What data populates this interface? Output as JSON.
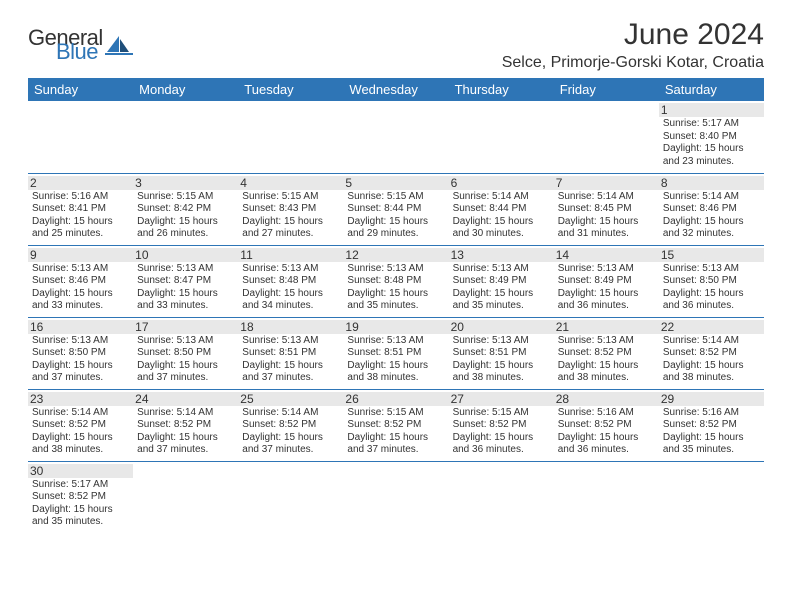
{
  "logo": {
    "general": "General",
    "blue": "Blue"
  },
  "title": "June 2024",
  "location": "Selce, Primorje-Gorski Kotar, Croatia",
  "colors": {
    "header_bg": "#2e75b6",
    "header_text": "#ffffff",
    "day_bg": "#e8e8e8",
    "border": "#2e75b6",
    "text": "#333333"
  },
  "weekdays": [
    "Sunday",
    "Monday",
    "Tuesday",
    "Wednesday",
    "Thursday",
    "Friday",
    "Saturday"
  ],
  "weeks": [
    [
      {
        "n": "",
        "sr": "",
        "ss": "",
        "dl": ""
      },
      {
        "n": "",
        "sr": "",
        "ss": "",
        "dl": ""
      },
      {
        "n": "",
        "sr": "",
        "ss": "",
        "dl": ""
      },
      {
        "n": "",
        "sr": "",
        "ss": "",
        "dl": ""
      },
      {
        "n": "",
        "sr": "",
        "ss": "",
        "dl": ""
      },
      {
        "n": "",
        "sr": "",
        "ss": "",
        "dl": ""
      },
      {
        "n": "1",
        "sr": "Sunrise: 5:17 AM",
        "ss": "Sunset: 8:40 PM",
        "dl": "Daylight: 15 hours and 23 minutes."
      }
    ],
    [
      {
        "n": "2",
        "sr": "Sunrise: 5:16 AM",
        "ss": "Sunset: 8:41 PM",
        "dl": "Daylight: 15 hours and 25 minutes."
      },
      {
        "n": "3",
        "sr": "Sunrise: 5:15 AM",
        "ss": "Sunset: 8:42 PM",
        "dl": "Daylight: 15 hours and 26 minutes."
      },
      {
        "n": "4",
        "sr": "Sunrise: 5:15 AM",
        "ss": "Sunset: 8:43 PM",
        "dl": "Daylight: 15 hours and 27 minutes."
      },
      {
        "n": "5",
        "sr": "Sunrise: 5:15 AM",
        "ss": "Sunset: 8:44 PM",
        "dl": "Daylight: 15 hours and 29 minutes."
      },
      {
        "n": "6",
        "sr": "Sunrise: 5:14 AM",
        "ss": "Sunset: 8:44 PM",
        "dl": "Daylight: 15 hours and 30 minutes."
      },
      {
        "n": "7",
        "sr": "Sunrise: 5:14 AM",
        "ss": "Sunset: 8:45 PM",
        "dl": "Daylight: 15 hours and 31 minutes."
      },
      {
        "n": "8",
        "sr": "Sunrise: 5:14 AM",
        "ss": "Sunset: 8:46 PM",
        "dl": "Daylight: 15 hours and 32 minutes."
      }
    ],
    [
      {
        "n": "9",
        "sr": "Sunrise: 5:13 AM",
        "ss": "Sunset: 8:46 PM",
        "dl": "Daylight: 15 hours and 33 minutes."
      },
      {
        "n": "10",
        "sr": "Sunrise: 5:13 AM",
        "ss": "Sunset: 8:47 PM",
        "dl": "Daylight: 15 hours and 33 minutes."
      },
      {
        "n": "11",
        "sr": "Sunrise: 5:13 AM",
        "ss": "Sunset: 8:48 PM",
        "dl": "Daylight: 15 hours and 34 minutes."
      },
      {
        "n": "12",
        "sr": "Sunrise: 5:13 AM",
        "ss": "Sunset: 8:48 PM",
        "dl": "Daylight: 15 hours and 35 minutes."
      },
      {
        "n": "13",
        "sr": "Sunrise: 5:13 AM",
        "ss": "Sunset: 8:49 PM",
        "dl": "Daylight: 15 hours and 35 minutes."
      },
      {
        "n": "14",
        "sr": "Sunrise: 5:13 AM",
        "ss": "Sunset: 8:49 PM",
        "dl": "Daylight: 15 hours and 36 minutes."
      },
      {
        "n": "15",
        "sr": "Sunrise: 5:13 AM",
        "ss": "Sunset: 8:50 PM",
        "dl": "Daylight: 15 hours and 36 minutes."
      }
    ],
    [
      {
        "n": "16",
        "sr": "Sunrise: 5:13 AM",
        "ss": "Sunset: 8:50 PM",
        "dl": "Daylight: 15 hours and 37 minutes."
      },
      {
        "n": "17",
        "sr": "Sunrise: 5:13 AM",
        "ss": "Sunset: 8:50 PM",
        "dl": "Daylight: 15 hours and 37 minutes."
      },
      {
        "n": "18",
        "sr": "Sunrise: 5:13 AM",
        "ss": "Sunset: 8:51 PM",
        "dl": "Daylight: 15 hours and 37 minutes."
      },
      {
        "n": "19",
        "sr": "Sunrise: 5:13 AM",
        "ss": "Sunset: 8:51 PM",
        "dl": "Daylight: 15 hours and 38 minutes."
      },
      {
        "n": "20",
        "sr": "Sunrise: 5:13 AM",
        "ss": "Sunset: 8:51 PM",
        "dl": "Daylight: 15 hours and 38 minutes."
      },
      {
        "n": "21",
        "sr": "Sunrise: 5:13 AM",
        "ss": "Sunset: 8:52 PM",
        "dl": "Daylight: 15 hours and 38 minutes."
      },
      {
        "n": "22",
        "sr": "Sunrise: 5:14 AM",
        "ss": "Sunset: 8:52 PM",
        "dl": "Daylight: 15 hours and 38 minutes."
      }
    ],
    [
      {
        "n": "23",
        "sr": "Sunrise: 5:14 AM",
        "ss": "Sunset: 8:52 PM",
        "dl": "Daylight: 15 hours and 38 minutes."
      },
      {
        "n": "24",
        "sr": "Sunrise: 5:14 AM",
        "ss": "Sunset: 8:52 PM",
        "dl": "Daylight: 15 hours and 37 minutes."
      },
      {
        "n": "25",
        "sr": "Sunrise: 5:14 AM",
        "ss": "Sunset: 8:52 PM",
        "dl": "Daylight: 15 hours and 37 minutes."
      },
      {
        "n": "26",
        "sr": "Sunrise: 5:15 AM",
        "ss": "Sunset: 8:52 PM",
        "dl": "Daylight: 15 hours and 37 minutes."
      },
      {
        "n": "27",
        "sr": "Sunrise: 5:15 AM",
        "ss": "Sunset: 8:52 PM",
        "dl": "Daylight: 15 hours and 36 minutes."
      },
      {
        "n": "28",
        "sr": "Sunrise: 5:16 AM",
        "ss": "Sunset: 8:52 PM",
        "dl": "Daylight: 15 hours and 36 minutes."
      },
      {
        "n": "29",
        "sr": "Sunrise: 5:16 AM",
        "ss": "Sunset: 8:52 PM",
        "dl": "Daylight: 15 hours and 35 minutes."
      }
    ],
    [
      {
        "n": "30",
        "sr": "Sunrise: 5:17 AM",
        "ss": "Sunset: 8:52 PM",
        "dl": "Daylight: 15 hours and 35 minutes."
      },
      {
        "n": "",
        "sr": "",
        "ss": "",
        "dl": ""
      },
      {
        "n": "",
        "sr": "",
        "ss": "",
        "dl": ""
      },
      {
        "n": "",
        "sr": "",
        "ss": "",
        "dl": ""
      },
      {
        "n": "",
        "sr": "",
        "ss": "",
        "dl": ""
      },
      {
        "n": "",
        "sr": "",
        "ss": "",
        "dl": ""
      },
      {
        "n": "",
        "sr": "",
        "ss": "",
        "dl": ""
      }
    ]
  ]
}
